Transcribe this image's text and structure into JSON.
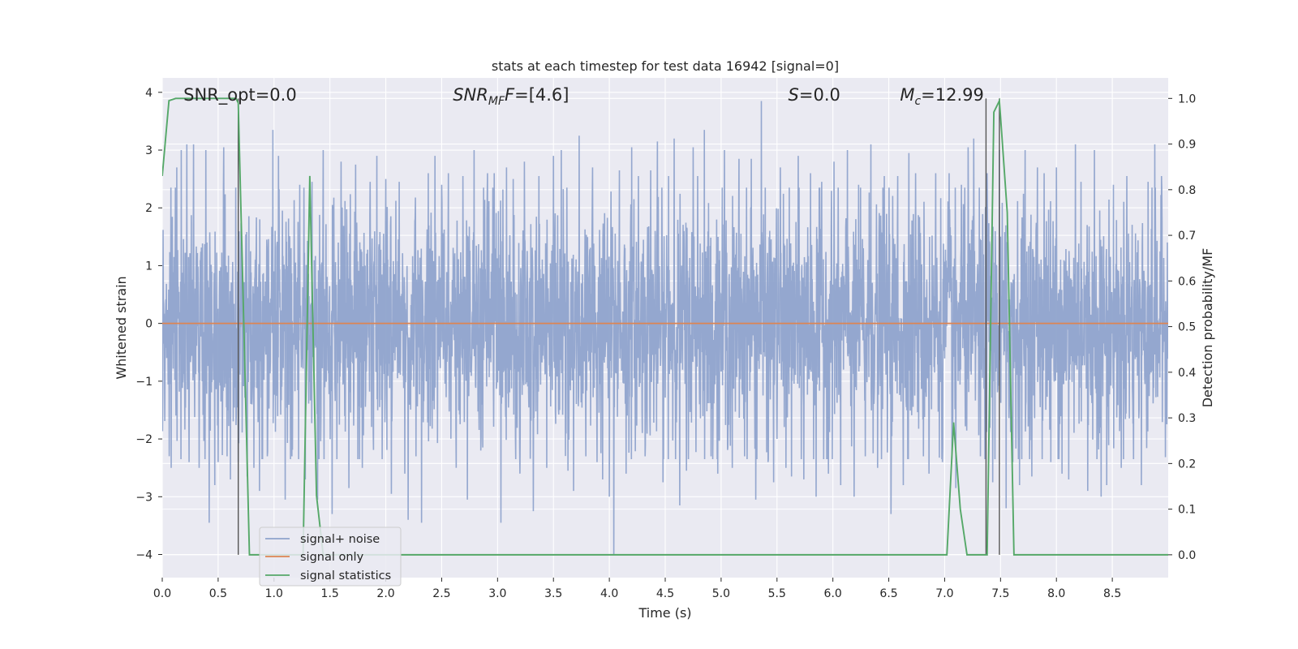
{
  "chart_data": {
    "type": "line",
    "title": "stats at each timestep for test data 16942 [signal=0]",
    "xlabel": "Time (s)",
    "ylabel": "Whitened strain",
    "y2label": "Detection probability/MF",
    "xlim": [
      0.0,
      9.0
    ],
    "ylim": [
      -4.4,
      4.25
    ],
    "y2lim": [
      -0.05,
      1.045
    ],
    "xticks": [
      "0.0",
      "0.5",
      "1.0",
      "1.5",
      "2.0",
      "2.5",
      "3.0",
      "3.5",
      "4.0",
      "4.5",
      "5.0",
      "5.5",
      "6.0",
      "6.5",
      "7.0",
      "7.5",
      "8.0",
      "8.5"
    ],
    "yticks": [
      "4",
      "3",
      "2",
      "1",
      "0",
      "−1",
      "−2",
      "−3",
      "−4"
    ],
    "y2ticks": [
      "1.0",
      "0.9",
      "0.8",
      "0.7",
      "0.6",
      "0.5",
      "0.4",
      "0.3",
      "0.2",
      "0.1",
      "0.0"
    ],
    "grid": true,
    "legend_position": "lower-left",
    "colors": {
      "noise": "#8fa3cc",
      "signal": "#dd8452",
      "stat": "#55a868",
      "vline": "#555555",
      "background": "#eaeaf2",
      "grid": "#ffffff"
    },
    "annotations": [
      {
        "label": "SNR_opt=0.0",
        "x": 0.19
      },
      {
        "label": "SNR",
        "sub": "MF",
        "tail": "=[4.6]",
        "x": 2.6
      },
      {
        "label": "S",
        "tail": "=0.0",
        "x": 5.6
      },
      {
        "label": "M",
        "sub": "c",
        "tail": "=12.99",
        "x": 6.6
      }
    ],
    "vlines": [
      0.68,
      7.37,
      7.49
    ],
    "series": [
      {
        "name": "signal+ noise",
        "kind": "noise",
        "dt": 0.0025,
        "sigma": 1.0,
        "spikes": [
          [
            0.08,
            -2.5
          ],
          [
            0.13,
            2.7
          ],
          [
            0.17,
            3.0
          ],
          [
            0.22,
            3.1
          ],
          [
            0.24,
            -2.4
          ],
          [
            0.28,
            3.1
          ],
          [
            0.33,
            -2.5
          ],
          [
            0.39,
            3.0
          ],
          [
            0.42,
            -3.45
          ],
          [
            0.47,
            -2.8
          ],
          [
            0.5,
            -2.4
          ],
          [
            0.55,
            3.05
          ],
          [
            0.58,
            -2.3
          ],
          [
            0.61,
            -2.7
          ],
          [
            0.68,
            -2.4
          ],
          [
            0.76,
            -2.65
          ],
          [
            0.82,
            -2.5
          ],
          [
            0.87,
            -2.9
          ],
          [
            0.94,
            -2.3
          ],
          [
            0.99,
            3.35
          ],
          [
            1.04,
            2.9
          ],
          [
            1.1,
            -3.05
          ],
          [
            1.16,
            -2.3
          ],
          [
            1.23,
            2.4
          ],
          [
            1.28,
            -2.7
          ],
          [
            1.34,
            2.45
          ],
          [
            1.39,
            -3.05
          ],
          [
            1.44,
            3.0
          ],
          [
            1.52,
            -3.3
          ],
          [
            1.6,
            2.8
          ],
          [
            1.67,
            -2.85
          ],
          [
            1.73,
            2.75
          ],
          [
            1.79,
            -2.5
          ],
          [
            1.86,
            2.45
          ],
          [
            1.92,
            2.9
          ],
          [
            2.0,
            2.5
          ],
          [
            2.05,
            -2.95
          ],
          [
            2.12,
            2.45
          ],
          [
            2.17,
            -2.6
          ],
          [
            2.2,
            -3.4
          ],
          [
            2.27,
            -2.3
          ],
          [
            2.32,
            -3.45
          ],
          [
            2.38,
            2.6
          ],
          [
            2.44,
            2.9
          ],
          [
            2.5,
            2.4
          ],
          [
            2.56,
            2.6
          ],
          [
            2.63,
            -2.5
          ],
          [
            2.69,
            2.55
          ],
          [
            2.73,
            -3.05
          ],
          [
            2.79,
            3.0
          ],
          [
            2.85,
            -2.2
          ],
          [
            2.91,
            2.6
          ],
          [
            2.97,
            2.6
          ],
          [
            3.03,
            -3.45
          ],
          [
            3.08,
            2.7
          ],
          [
            3.14,
            2.5
          ],
          [
            3.2,
            -2.6
          ],
          [
            3.24,
            2.8
          ],
          [
            3.32,
            -3.25
          ],
          [
            3.37,
            2.55
          ],
          [
            3.44,
            -2.5
          ],
          [
            3.5,
            2.9
          ],
          [
            3.57,
            3.0
          ],
          [
            3.63,
            -2.55
          ],
          [
            3.68,
            -2.9
          ],
          [
            3.73,
            3.25
          ],
          [
            3.79,
            -2.3
          ],
          [
            3.85,
            2.7
          ],
          [
            3.89,
            -2.4
          ],
          [
            3.94,
            -2.7
          ],
          [
            4.0,
            -3.0
          ],
          [
            4.04,
            -4.0
          ],
          [
            4.09,
            2.65
          ],
          [
            4.15,
            -2.6
          ],
          [
            4.2,
            3.05
          ],
          [
            4.26,
            2.55
          ],
          [
            4.32,
            -2.3
          ],
          [
            4.37,
            2.65
          ],
          [
            4.43,
            3.15
          ],
          [
            4.48,
            -2.75
          ],
          [
            4.53,
            2.55
          ],
          [
            4.58,
            3.2
          ],
          [
            4.63,
            -3.15
          ],
          [
            4.69,
            -2.55
          ],
          [
            4.75,
            3.05
          ],
          [
            4.79,
            2.55
          ],
          [
            4.85,
            3.35
          ],
          [
            4.91,
            -2.3
          ],
          [
            4.97,
            -2.6
          ],
          [
            5.03,
            3.0
          ],
          [
            5.1,
            -2.5
          ],
          [
            5.16,
            2.85
          ],
          [
            5.21,
            -2.3
          ],
          [
            5.27,
            2.85
          ],
          [
            5.31,
            -3.05
          ],
          [
            5.36,
            3.85
          ],
          [
            5.42,
            -2.4
          ],
          [
            5.47,
            -2.75
          ],
          [
            5.53,
            2.7
          ],
          [
            5.58,
            -2.5
          ],
          [
            5.63,
            -2.65
          ],
          [
            5.69,
            2.9
          ],
          [
            5.74,
            -2.7
          ],
          [
            5.8,
            2.6
          ],
          [
            5.85,
            -3.0
          ],
          [
            5.9,
            2.45
          ],
          [
            5.96,
            -2.6
          ],
          [
            6.01,
            2.8
          ],
          [
            6.07,
            -2.8
          ],
          [
            6.13,
            3.0
          ],
          [
            6.19,
            -3.0
          ],
          [
            6.23,
            2.4
          ],
          [
            6.29,
            -2.3
          ],
          [
            6.34,
            3.1
          ],
          [
            6.4,
            -2.5
          ],
          [
            6.46,
            2.55
          ],
          [
            6.52,
            -3.3
          ],
          [
            6.58,
            2.55
          ],
          [
            6.63,
            -2.8
          ],
          [
            6.68,
            2.95
          ],
          [
            6.74,
            2.6
          ],
          [
            6.81,
            -2.3
          ],
          [
            6.86,
            -2.6
          ],
          [
            6.92,
            2.6
          ],
          [
            6.98,
            -2.4
          ],
          [
            7.04,
            2.6
          ],
          [
            7.1,
            -2.85
          ],
          [
            7.15,
            2.4
          ],
          [
            7.21,
            3.05
          ],
          [
            7.26,
            3.2
          ],
          [
            7.32,
            -2.3
          ],
          [
            7.38,
            2.6
          ],
          [
            7.43,
            -2.75
          ],
          [
            7.49,
            3.0
          ],
          [
            7.55,
            -3.2
          ],
          [
            7.61,
            -2.4
          ],
          [
            7.67,
            -2.8
          ],
          [
            7.72,
            3.0
          ],
          [
            7.78,
            -2.65
          ],
          [
            7.83,
            2.7
          ],
          [
            7.89,
            2.6
          ],
          [
            7.95,
            -2.4
          ],
          [
            8.0,
            2.7
          ],
          [
            8.05,
            -2.6
          ],
          [
            8.11,
            -2.7
          ],
          [
            8.17,
            3.1
          ],
          [
            8.22,
            2.45
          ],
          [
            8.28,
            -2.9
          ],
          [
            8.34,
            3.0
          ],
          [
            8.4,
            -3.0
          ],
          [
            8.45,
            -2.8
          ],
          [
            8.51,
            2.4
          ],
          [
            8.58,
            -2.5
          ],
          [
            8.63,
            2.55
          ],
          [
            8.69,
            -2.35
          ],
          [
            8.76,
            -2.8
          ],
          [
            8.82,
            2.45
          ],
          [
            8.88,
            3.1
          ],
          [
            8.94,
            2.55
          ]
        ]
      },
      {
        "name": "signal only",
        "kind": "flat",
        "x": [
          0.0,
          9.0
        ],
        "y": [
          0.0,
          0.0
        ]
      },
      {
        "name": "signal statistics",
        "kind": "stat",
        "axis": "right",
        "x": [
          0.0,
          0.06,
          0.12,
          0.18,
          0.24,
          0.3,
          0.36,
          0.42,
          0.48,
          0.54,
          0.6,
          0.66,
          0.68,
          0.72,
          0.78,
          0.84,
          1.2,
          1.26,
          1.32,
          1.38,
          1.44,
          1.5,
          6.9,
          6.96,
          7.02,
          7.08,
          7.14,
          7.2,
          7.26,
          7.32,
          7.38,
          7.44,
          7.49,
          7.56,
          7.62,
          7.68,
          9.0
        ],
        "y": [
          0.83,
          0.995,
          1.0,
          1.0,
          1.0,
          1.0,
          1.0,
          1.0,
          1.0,
          1.0,
          1.0,
          1.0,
          0.99,
          0.6,
          0.0,
          0.0,
          0.0,
          0.0,
          0.83,
          0.13,
          0.0,
          0.0,
          0.0,
          0.0,
          0.0,
          0.29,
          0.1,
          0.0,
          0.0,
          0.0,
          0.0,
          0.97,
          0.995,
          0.75,
          0.0,
          0.0,
          0.0
        ]
      }
    ]
  }
}
